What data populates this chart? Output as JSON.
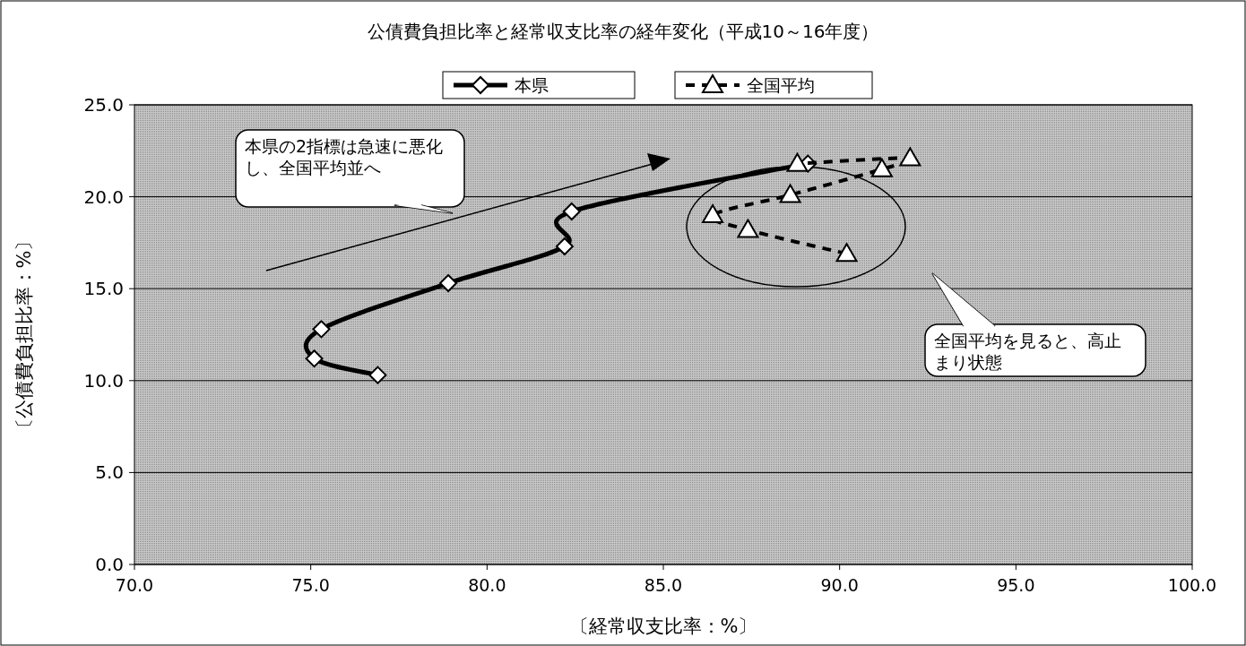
{
  "chart_data": {
    "type": "line",
    "title": "公債費負担比率と経常収支比率の経年変化（平成10～16年度）",
    "xlabel": "〔経常収支比率：%〕",
    "ylabel": "〔公債費負担比率：%〕",
    "xlim": [
      70,
      100
    ],
    "ylim": [
      0,
      25
    ],
    "xticks": [
      {
        "value": 70,
        "label": "70.0"
      },
      {
        "value": 75,
        "label": "75.0"
      },
      {
        "value": 80,
        "label": "80.0"
      },
      {
        "value": 85,
        "label": "85.0"
      },
      {
        "value": 90,
        "label": "90.0"
      },
      {
        "value": 95,
        "label": "95.0"
      },
      {
        "value": 100,
        "label": "100.0"
      }
    ],
    "yticks": [
      {
        "value": 0,
        "label": "0.0"
      },
      {
        "value": 5,
        "label": "5.0"
      },
      {
        "value": 10,
        "label": "10.0"
      },
      {
        "value": 15,
        "label": "15.0"
      },
      {
        "value": 20,
        "label": "20.0"
      },
      {
        "value": 25,
        "label": "25.0"
      }
    ],
    "grid": "y",
    "legend": "top",
    "series": [
      {
        "name": "本県",
        "color": "#000000",
        "marker": "diamond",
        "line_style": "solid",
        "x": [
          76.9,
          75.1,
          75.3,
          78.9,
          82.2,
          82.4,
          89.1
        ],
        "values": [
          10.3,
          11.2,
          12.8,
          15.3,
          17.3,
          19.2,
          21.8
        ]
      },
      {
        "name": "全国平均",
        "color": "#000000",
        "marker": "triangle",
        "line_style": "dashed",
        "x": [
          90.2,
          87.4,
          86.4,
          88.6,
          91.2,
          92.0,
          88.8
        ],
        "values": [
          16.9,
          18.2,
          19.0,
          20.1,
          21.5,
          22.1,
          21.8
        ]
      }
    ],
    "annotations": [
      "本県の2指標は急速に悪化し、全国平均並へ",
      "全国平均を見ると、高止まり状態"
    ]
  }
}
